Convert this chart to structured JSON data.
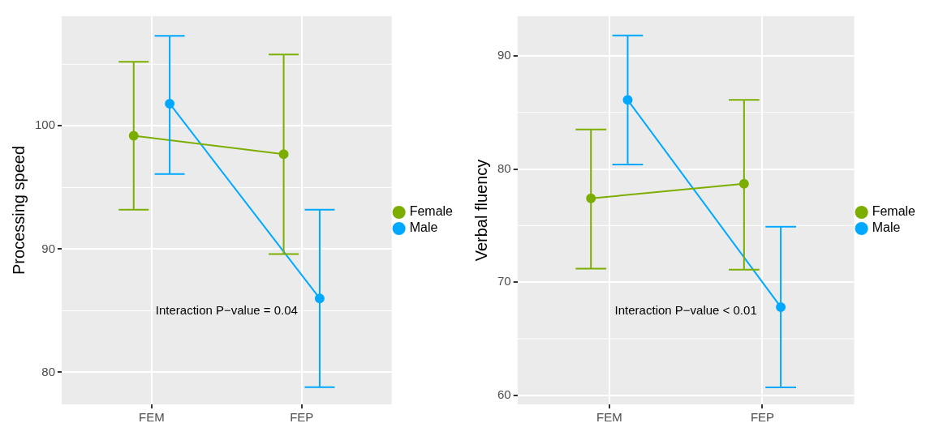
{
  "chart_data": [
    {
      "type": "line",
      "ylabel": "Processing speed",
      "categories": [
        "FEM",
        "FEP"
      ],
      "ylim": [
        77.4,
        108.9
      ],
      "yticks": [
        80,
        90,
        100
      ],
      "grid": true,
      "legend": "right",
      "marker": "circle",
      "annotations": [
        "Interaction P−value = 0.04"
      ],
      "series": [
        {
          "name": "Female",
          "color": "#7cae00",
          "values": [
            99.2,
            97.7
          ],
          "errors": [
            [
              93.2,
              105.2
            ],
            [
              89.6,
              105.8
            ]
          ]
        },
        {
          "name": "Male",
          "color": "#00a9ff",
          "values": [
            101.8,
            86.0
          ],
          "errors": [
            [
              96.1,
              107.3
            ],
            [
              78.8,
              93.2
            ]
          ]
        }
      ]
    },
    {
      "type": "line",
      "ylabel": "Verbal fluency",
      "categories": [
        "FEM",
        "FEP"
      ],
      "ylim": [
        59.2,
        93.5
      ],
      "yticks": [
        60,
        70,
        80,
        90
      ],
      "grid": true,
      "legend": "right",
      "marker": "circle",
      "annotations": [
        "Interaction P−value < 0.01"
      ],
      "series": [
        {
          "name": "Female",
          "color": "#7cae00",
          "values": [
            77.4,
            78.7
          ],
          "errors": [
            [
              71.2,
              83.5
            ],
            [
              71.1,
              86.1
            ]
          ]
        },
        {
          "name": "Male",
          "color": "#00a9ff",
          "values": [
            86.1,
            67.8
          ],
          "errors": [
            [
              80.4,
              91.8
            ],
            [
              60.7,
              74.9
            ]
          ]
        }
      ]
    }
  ]
}
